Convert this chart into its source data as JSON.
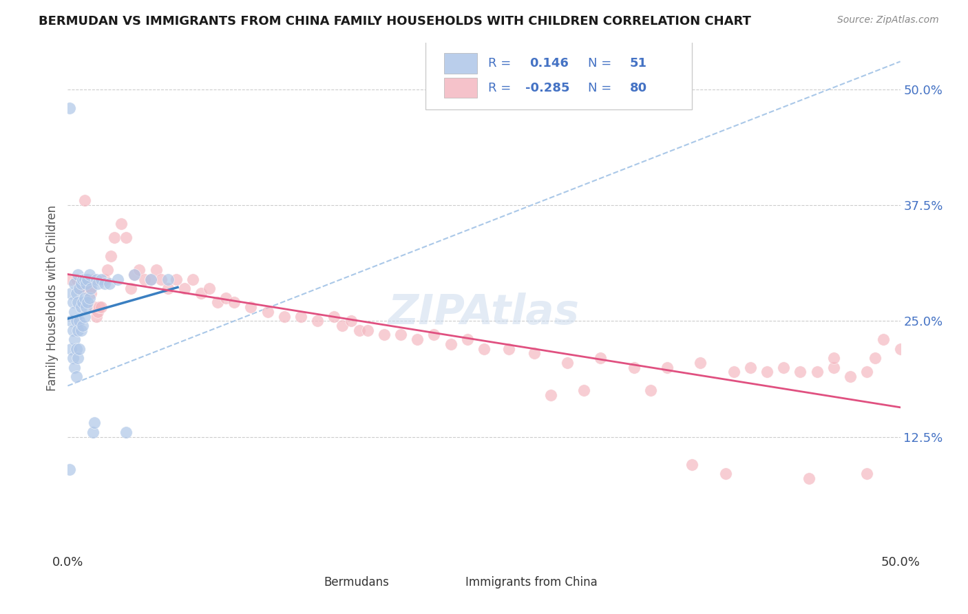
{
  "title": "BERMUDAN VS IMMIGRANTS FROM CHINA FAMILY HOUSEHOLDS WITH CHILDREN CORRELATION CHART",
  "source": "Source: ZipAtlas.com",
  "ylabel": "Family Households with Children",
  "xlim": [
    0.0,
    0.5
  ],
  "ylim": [
    0.0,
    0.55
  ],
  "y_tick_labels_right": [
    "50.0%",
    "37.5%",
    "25.0%",
    "12.5%"
  ],
  "y_tick_positions_right": [
    0.5,
    0.375,
    0.25,
    0.125
  ],
  "legend_r_blue": "0.146",
  "legend_n_blue": "51",
  "legend_r_pink": "-0.285",
  "legend_n_pink": "80",
  "blue_scatter_color": "#aec6e8",
  "pink_scatter_color": "#f4b8c1",
  "blue_line_color": "#3a7fc1",
  "pink_line_color": "#e05080",
  "dashed_line_color": "#aac8e8",
  "grid_color": "#cccccc",
  "watermark": "ZIPAtlas",
  "legend_text_color": "#4472c4",
  "bermudans_x": [
    0.001,
    0.001,
    0.002,
    0.002,
    0.002,
    0.003,
    0.003,
    0.003,
    0.004,
    0.004,
    0.004,
    0.004,
    0.005,
    0.005,
    0.005,
    0.005,
    0.006,
    0.006,
    0.006,
    0.006,
    0.007,
    0.007,
    0.007,
    0.008,
    0.008,
    0.008,
    0.009,
    0.009,
    0.009,
    0.01,
    0.01,
    0.01,
    0.011,
    0.011,
    0.012,
    0.012,
    0.013,
    0.013,
    0.014,
    0.015,
    0.016,
    0.017,
    0.018,
    0.02,
    0.022,
    0.025,
    0.03,
    0.035,
    0.04,
    0.05,
    0.06
  ],
  "bermudans_y": [
    0.48,
    0.09,
    0.22,
    0.25,
    0.28,
    0.21,
    0.24,
    0.27,
    0.2,
    0.23,
    0.26,
    0.29,
    0.19,
    0.22,
    0.25,
    0.28,
    0.21,
    0.24,
    0.27,
    0.3,
    0.22,
    0.25,
    0.285,
    0.24,
    0.265,
    0.29,
    0.245,
    0.27,
    0.295,
    0.255,
    0.275,
    0.295,
    0.265,
    0.29,
    0.27,
    0.295,
    0.275,
    0.3,
    0.285,
    0.13,
    0.14,
    0.295,
    0.29,
    0.295,
    0.29,
    0.29,
    0.295,
    0.13,
    0.3,
    0.295,
    0.295
  ],
  "china_x": [
    0.002,
    0.005,
    0.007,
    0.01,
    0.011,
    0.012,
    0.013,
    0.014,
    0.015,
    0.016,
    0.017,
    0.018,
    0.019,
    0.02,
    0.022,
    0.024,
    0.026,
    0.028,
    0.032,
    0.035,
    0.038,
    0.04,
    0.043,
    0.046,
    0.05,
    0.053,
    0.056,
    0.06,
    0.065,
    0.07,
    0.075,
    0.08,
    0.085,
    0.09,
    0.095,
    0.1,
    0.11,
    0.12,
    0.13,
    0.14,
    0.15,
    0.16,
    0.165,
    0.17,
    0.175,
    0.18,
    0.19,
    0.2,
    0.21,
    0.22,
    0.23,
    0.24,
    0.25,
    0.265,
    0.28,
    0.3,
    0.32,
    0.34,
    0.36,
    0.38,
    0.4,
    0.42,
    0.43,
    0.44,
    0.45,
    0.46,
    0.47,
    0.48,
    0.49,
    0.35,
    0.31,
    0.29,
    0.41,
    0.46,
    0.48,
    0.395,
    0.445,
    0.375,
    0.485,
    0.5
  ],
  "china_y": [
    0.295,
    0.295,
    0.285,
    0.38,
    0.285,
    0.295,
    0.285,
    0.28,
    0.295,
    0.265,
    0.255,
    0.26,
    0.265,
    0.265,
    0.295,
    0.305,
    0.32,
    0.34,
    0.355,
    0.34,
    0.285,
    0.3,
    0.305,
    0.295,
    0.295,
    0.305,
    0.295,
    0.285,
    0.295,
    0.285,
    0.295,
    0.28,
    0.285,
    0.27,
    0.275,
    0.27,
    0.265,
    0.26,
    0.255,
    0.255,
    0.25,
    0.255,
    0.245,
    0.25,
    0.24,
    0.24,
    0.235,
    0.235,
    0.23,
    0.235,
    0.225,
    0.23,
    0.22,
    0.22,
    0.215,
    0.205,
    0.21,
    0.2,
    0.2,
    0.205,
    0.195,
    0.195,
    0.2,
    0.195,
    0.195,
    0.2,
    0.19,
    0.195,
    0.23,
    0.175,
    0.175,
    0.17,
    0.2,
    0.21,
    0.085,
    0.085,
    0.08,
    0.095,
    0.21,
    0.22
  ]
}
